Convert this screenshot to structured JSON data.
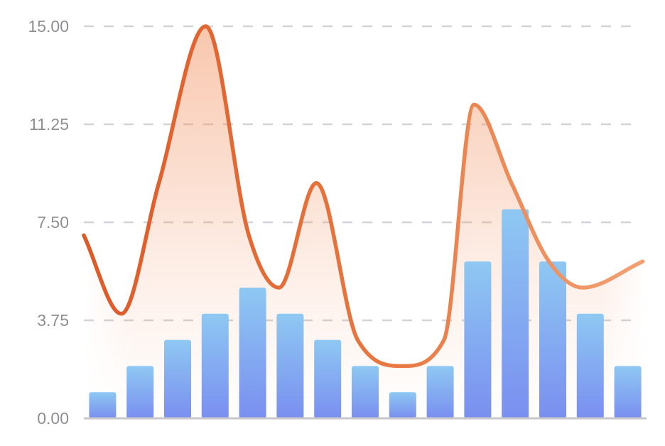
{
  "chart_data": {
    "type": "bar+line",
    "title": "",
    "xlabel": "",
    "ylabel": "",
    "ylim": [
      0,
      15
    ],
    "y_ticks": [
      "0.00",
      "3.75",
      "7.50",
      "11.25",
      "15.00"
    ],
    "y_tick_values": [
      0,
      3.75,
      7.5,
      11.25,
      15
    ],
    "grid": true,
    "legend": "none",
    "bars": {
      "values": [
        1,
        2,
        3,
        4,
        5,
        4,
        3,
        2,
        1,
        2,
        6,
        8,
        6,
        4,
        2
      ],
      "color_top": "#8ec8f2",
      "color_bottom": "#7a8ff0"
    },
    "line": {
      "x_range": [
        0,
        15
      ],
      "points": [
        [
          0,
          7
        ],
        [
          1,
          4
        ],
        [
          2,
          9
        ],
        [
          3.25,
          15
        ],
        [
          4.4,
          7
        ],
        [
          5.2,
          5
        ],
        [
          6.2,
          9
        ],
        [
          7.3,
          3
        ],
        [
          8.5,
          2
        ],
        [
          9.6,
          3
        ],
        [
          10.4,
          12
        ],
        [
          11.4,
          9
        ],
        [
          12.4,
          6
        ],
        [
          13.3,
          5
        ],
        [
          14.9,
          6
        ]
      ],
      "color_start": "#de5a28",
      "color_end": "#f2a072",
      "fill_color": "#f0824a"
    }
  }
}
